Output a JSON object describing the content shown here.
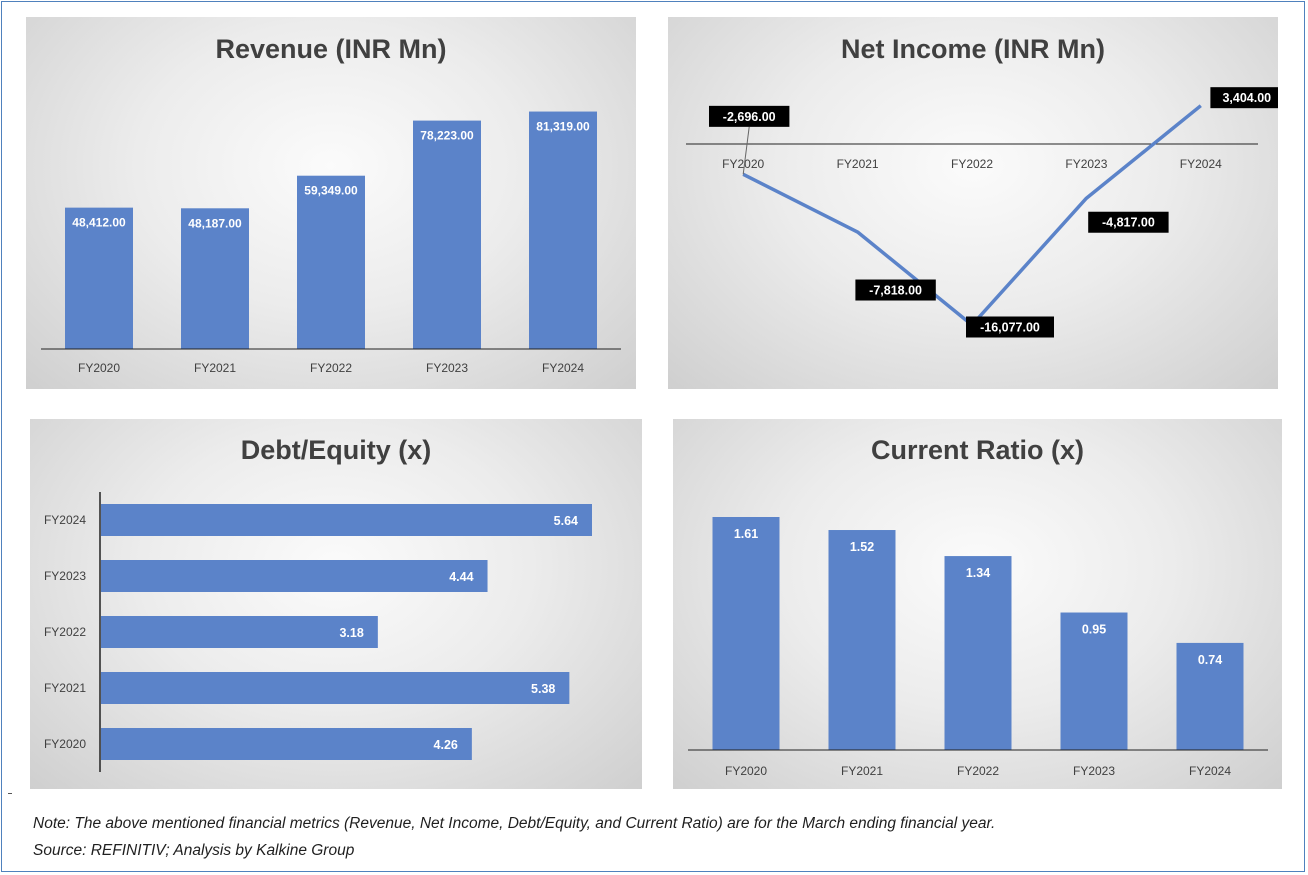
{
  "chart_data": [
    {
      "id": "revenue",
      "type": "bar",
      "title": "Revenue (INR Mn)",
      "categories": [
        "FY2020",
        "FY2021",
        "FY2022",
        "FY2023",
        "FY2024"
      ],
      "values": [
        48412.0,
        48187.0,
        59349.0,
        78223.0,
        81319.0
      ],
      "labels": [
        "48,412.00",
        "48,187.00",
        "59,349.00",
        "78,223.00",
        "81,319.00"
      ],
      "ylim": [
        0,
        100000
      ],
      "grid": false,
      "legend": "none",
      "color": "#5b83c9"
    },
    {
      "id": "net_income",
      "type": "line",
      "title": "Net Income (INR Mn)",
      "categories": [
        "FY2020",
        "FY2021",
        "FY2022",
        "FY2023",
        "FY2024"
      ],
      "values": [
        -2696.0,
        -7818.0,
        -16077.0,
        -4817.0,
        3404.0
      ],
      "labels": [
        "-2,696.00",
        "-7,818.00",
        "-16,077.00",
        "-4,817.00",
        "3,404.00"
      ],
      "ylim": [
        -17000,
        5000
      ],
      "grid": false,
      "legend": "none",
      "color": "#5b83c9"
    },
    {
      "id": "debt_equity",
      "type": "bar",
      "orientation": "horizontal",
      "title": "Debt/Equity (x)",
      "categories": [
        "FY2024",
        "FY2023",
        "FY2022",
        "FY2021",
        "FY2020"
      ],
      "values": [
        5.64,
        4.44,
        3.18,
        5.38,
        4.26
      ],
      "labels": [
        "5.64",
        "4.44",
        "3.18",
        "5.38",
        "4.26"
      ],
      "xlim": [
        0,
        6
      ],
      "grid": false,
      "legend": "none",
      "color": "#5b83c9"
    },
    {
      "id": "current_ratio",
      "type": "bar",
      "title": "Current Ratio (x)",
      "categories": [
        "FY2020",
        "FY2021",
        "FY2022",
        "FY2023",
        "FY2024"
      ],
      "values": [
        1.61,
        1.52,
        1.34,
        0.95,
        0.74
      ],
      "labels": [
        "1.61",
        "1.52",
        "1.34",
        "0.95",
        "0.74"
      ],
      "ylim": [
        0,
        1.7
      ],
      "grid": false,
      "legend": "none",
      "color": "#5b83c9"
    }
  ],
  "footer": {
    "note": "Note: The above mentioned financial metrics (Revenue, Net Income, Debt/Equity, and Current Ratio) are for the March ending financial year.",
    "source": "Source: REFINITIV; Analysis by Kalkine Group"
  }
}
